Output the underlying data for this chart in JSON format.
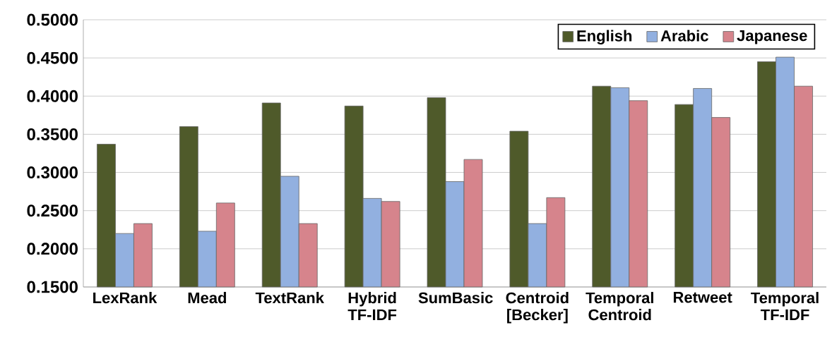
{
  "chart_data": {
    "type": "bar",
    "categories": [
      "LexRank",
      "Mead",
      "TextRank",
      "Hybrid TF-IDF",
      "SumBasic",
      "Centroid [Becker]",
      "Temporal Centroid",
      "Retweet",
      "Temporal TF-IDF"
    ],
    "series": [
      {
        "name": "English",
        "color": "#4f5a2a",
        "values": [
          0.337,
          0.36,
          0.391,
          0.387,
          0.398,
          0.354,
          0.413,
          0.389,
          0.445
        ]
      },
      {
        "name": "Arabic",
        "color": "#92b0e0",
        "values": [
          0.22,
          0.223,
          0.295,
          0.266,
          0.288,
          0.233,
          0.411,
          0.41,
          0.451
        ]
      },
      {
        "name": "Japanese",
        "color": "#d6848c",
        "values": [
          0.233,
          0.26,
          0.233,
          0.262,
          0.317,
          0.267,
          0.394,
          0.372,
          0.413
        ]
      }
    ],
    "ylim": [
      0.15,
      0.5
    ],
    "yticks": [
      {
        "value": 0.15,
        "label": "0.1500"
      },
      {
        "value": 0.2,
        "label": "0.2000"
      },
      {
        "value": 0.25,
        "label": "0.2500"
      },
      {
        "value": 0.3,
        "label": "0.3000"
      },
      {
        "value": 0.35,
        "label": "0.3500"
      },
      {
        "value": 0.4,
        "label": "0.4000"
      },
      {
        "value": 0.45,
        "label": "0.4500"
      },
      {
        "value": 0.5,
        "label": "0.5000"
      }
    ],
    "grid": "y",
    "legend": "top right"
  }
}
